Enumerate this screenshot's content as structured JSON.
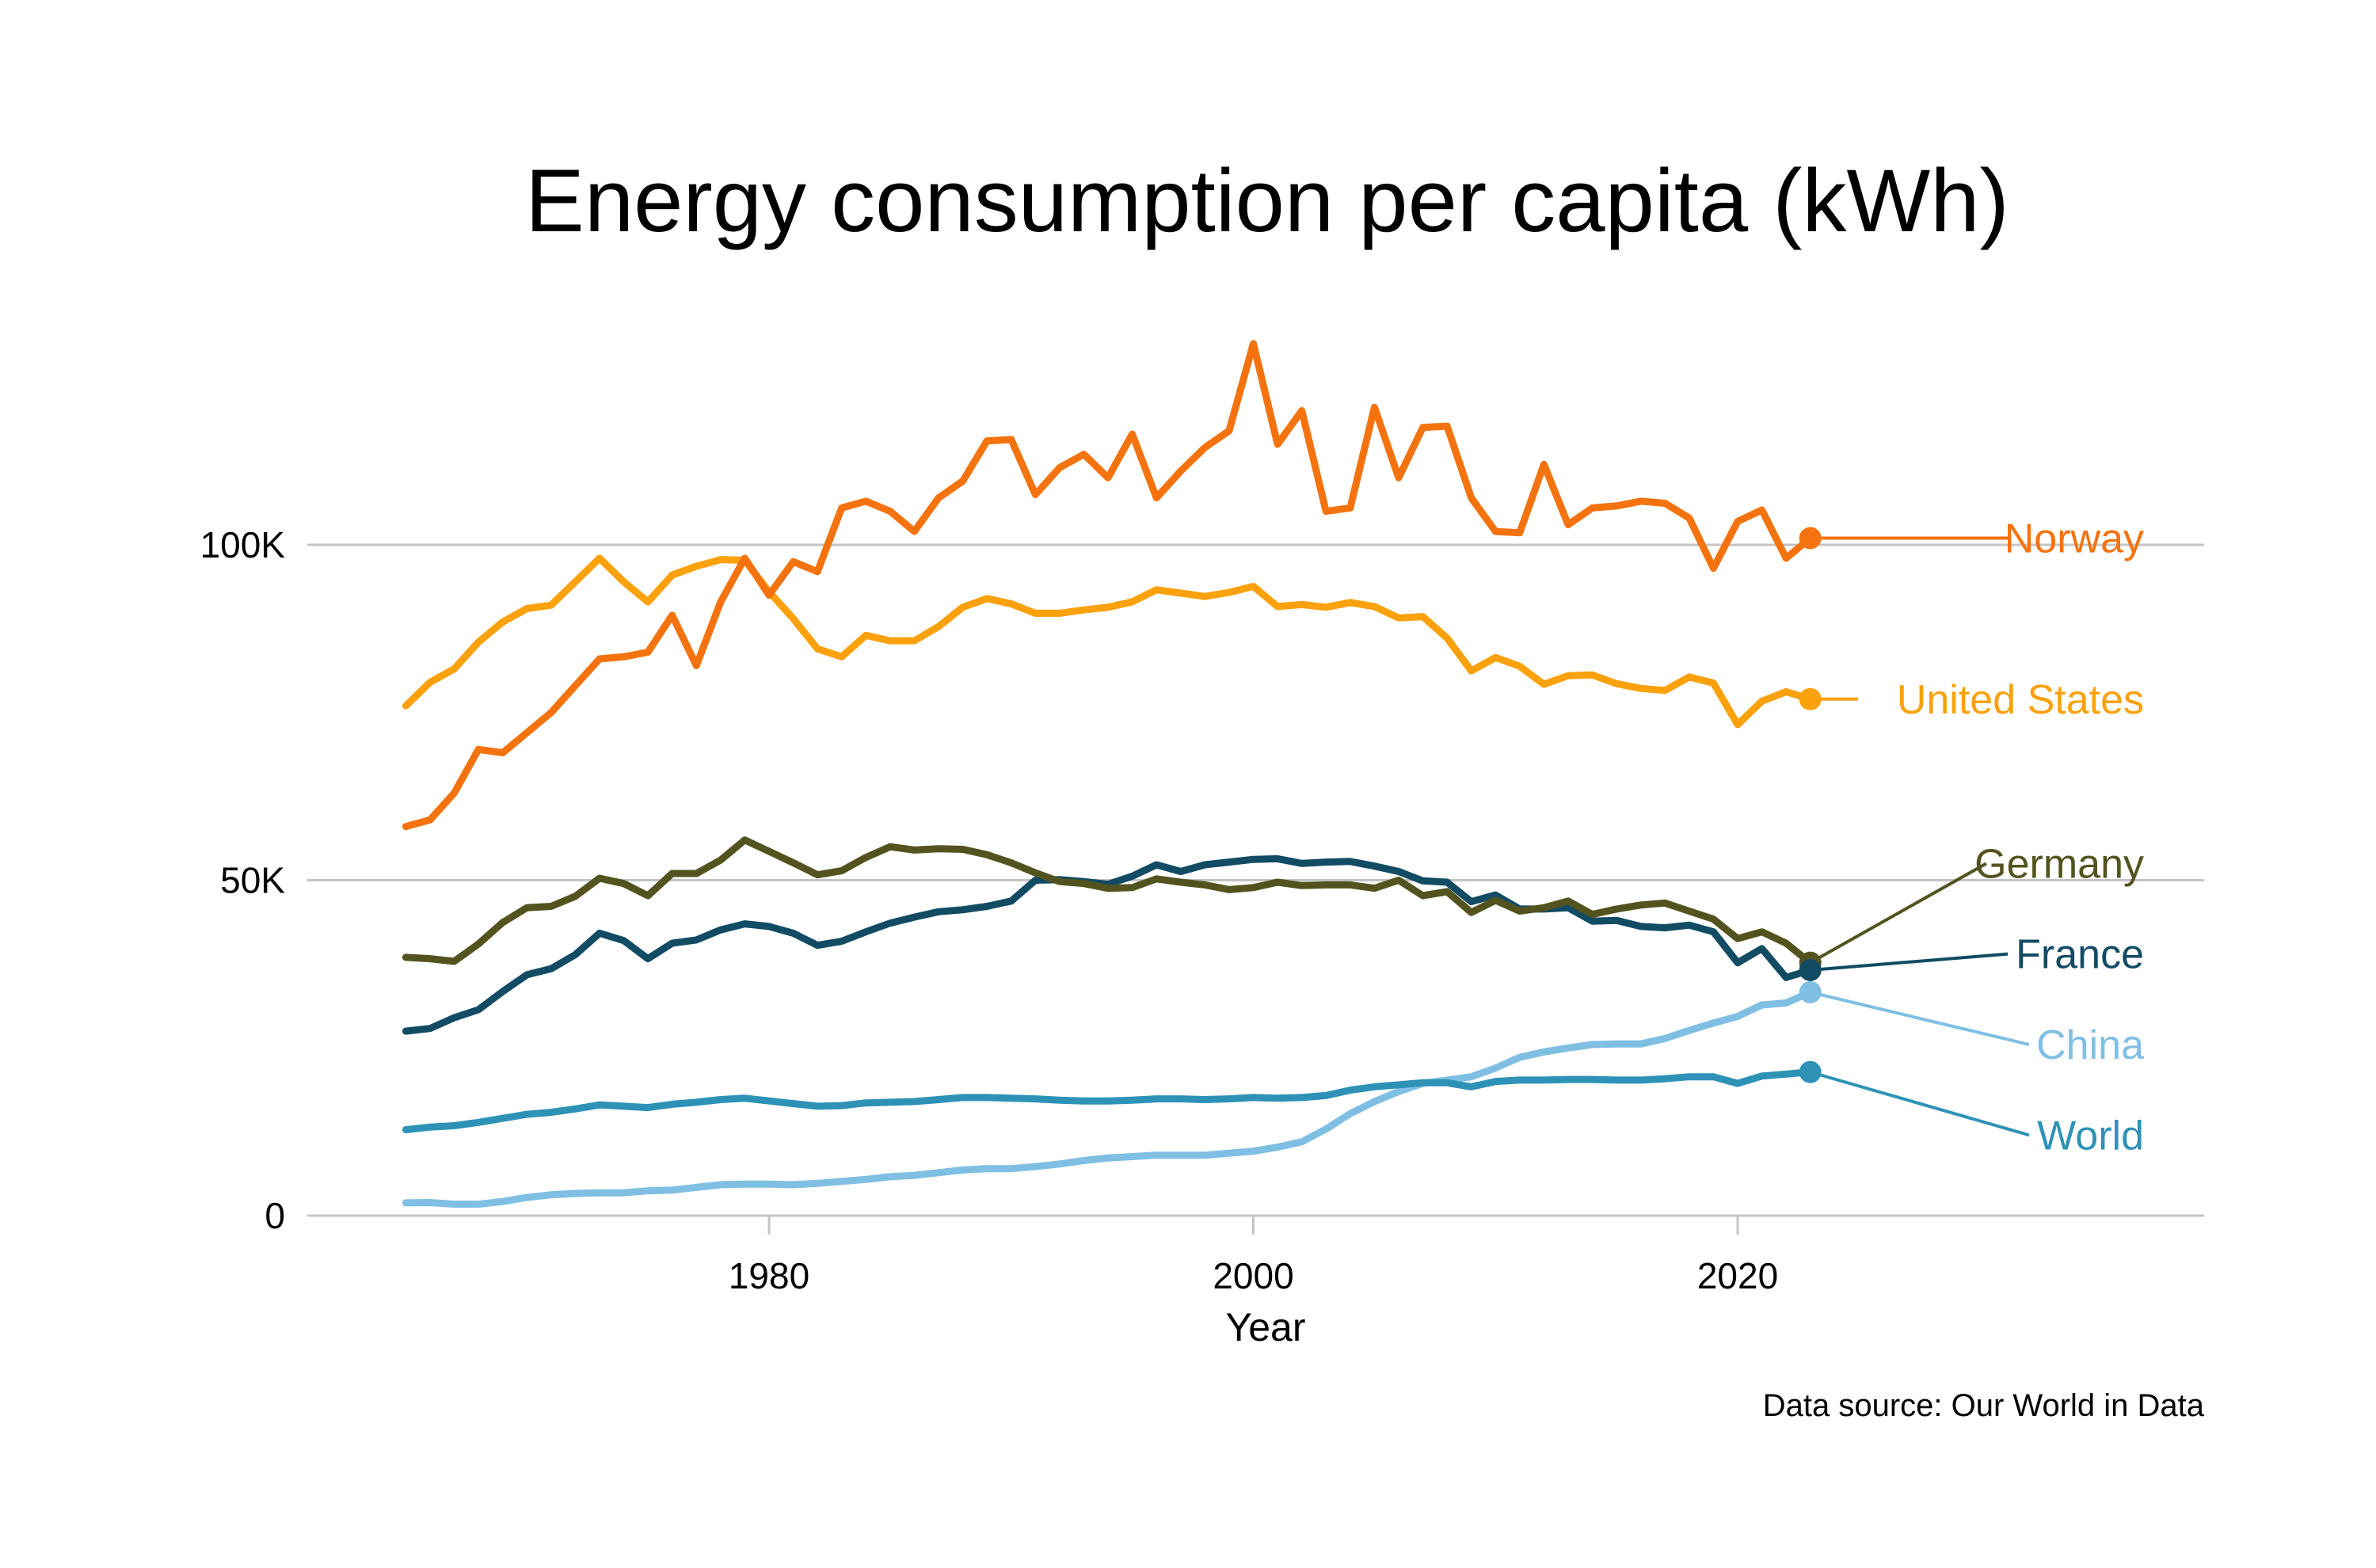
{
  "chart_data": {
    "type": "line",
    "title": "Energy consumption per capita (kWh)",
    "xlabel": "Year",
    "ylabel": "",
    "source": "Data source: Our World in Data",
    "xlim": [
      1955,
      2038
    ],
    "ylim": [
      0,
      140000
    ],
    "x_ticks": [
      1980,
      2000,
      2020
    ],
    "x_tick_labels": [
      "1980",
      "2000",
      "2020"
    ],
    "y_ticks": [
      0,
      50000,
      100000
    ],
    "y_tick_labels": [
      "0",
      "50K",
      "100K"
    ],
    "grid": "horizontal",
    "legend": "direct-labels-right",
    "x": [
      1965,
      1966,
      1967,
      1968,
      1969,
      1970,
      1971,
      1972,
      1973,
      1974,
      1975,
      1976,
      1977,
      1978,
      1979,
      1980,
      1981,
      1982,
      1983,
      1984,
      1985,
      1986,
      1987,
      1988,
      1989,
      1990,
      1991,
      1992,
      1993,
      1994,
      1995,
      1996,
      1997,
      1998,
      1999,
      2000,
      2001,
      2002,
      2003,
      2004,
      2005,
      2006,
      2007,
      2008,
      2009,
      2010,
      2011,
      2012,
      2013,
      2014,
      2015,
      2016,
      2017,
      2018,
      2019,
      2020,
      2021,
      2022,
      2023
    ],
    "series": [
      {
        "name": "Norway",
        "color": "#f5730f",
        "values": [
          58000,
          59000,
          63000,
          69500,
          69000,
          72000,
          75000,
          79000,
          83000,
          83300,
          84000,
          89500,
          82000,
          91500,
          98000,
          92500,
          97500,
          96000,
          105500,
          106500,
          105000,
          102000,
          107000,
          109500,
          115500,
          115700,
          107500,
          111500,
          113500,
          110000,
          116500,
          107000,
          111000,
          114500,
          117000,
          130000,
          115000,
          120000,
          105000,
          105500,
          120500,
          110000,
          117500,
          117700,
          107000,
          102000,
          101800,
          112000,
          103000,
          105500,
          105800,
          106500,
          106200,
          104000,
          96500,
          103500,
          105200,
          98000,
          101000
        ]
      },
      {
        "name": "United States",
        "color": "#fba10c",
        "values": [
          76000,
          79500,
          81500,
          85500,
          88500,
          90500,
          91000,
          94500,
          98000,
          94500,
          91500,
          95500,
          96800,
          97800,
          97700,
          93000,
          89000,
          84500,
          83300,
          86500,
          85700,
          85700,
          87800,
          90700,
          92000,
          91200,
          89800,
          89800,
          90300,
          90700,
          91500,
          93300,
          92800,
          92300,
          92900,
          93800,
          90800,
          91100,
          90700,
          91400,
          90800,
          89100,
          89300,
          86100,
          81200,
          83200,
          81900,
          79200,
          80500,
          80600,
          79300,
          78600,
          78300,
          80300,
          79400,
          73200,
          76700,
          78100,
          77000
        ]
      },
      {
        "name": "Germany",
        "color": "#53531f",
        "values": [
          38500,
          38300,
          37900,
          40500,
          43700,
          45900,
          46100,
          47600,
          50300,
          49500,
          47700,
          51000,
          51000,
          53000,
          56000,
          54300,
          52600,
          50800,
          51400,
          53400,
          55000,
          54500,
          54700,
          54600,
          53800,
          52600,
          51100,
          49800,
          49500,
          48800,
          48900,
          50200,
          49700,
          49300,
          48600,
          48900,
          49700,
          49200,
          49300,
          49300,
          48800,
          50000,
          47700,
          48300,
          45200,
          47000,
          45400,
          45900,
          46900,
          44900,
          45700,
          46300,
          46600,
          45400,
          44200,
          41300,
          42300,
          40600,
          37700
        ]
      },
      {
        "name": "France",
        "color": "#124b64",
        "values": [
          27500,
          27900,
          29500,
          30700,
          33400,
          35900,
          36800,
          38900,
          42100,
          41000,
          38300,
          40600,
          41100,
          42600,
          43500,
          43100,
          42100,
          40300,
          40900,
          42300,
          43600,
          44500,
          45300,
          45600,
          46100,
          46900,
          50000,
          50100,
          49800,
          49400,
          50600,
          52300,
          51300,
          52300,
          52700,
          53100,
          53200,
          52500,
          52700,
          52800,
          52100,
          51300,
          49900,
          49700,
          46800,
          47800,
          45700,
          45700,
          45900,
          43900,
          44000,
          43100,
          42900,
          43300,
          42300,
          37700,
          39800,
          35500,
          36600
        ]
      },
      {
        "name": "China",
        "color": "#7fbfe3",
        "values": [
          1900,
          1950,
          1700,
          1700,
          2100,
          2700,
          3100,
          3300,
          3400,
          3400,
          3700,
          3800,
          4200,
          4600,
          4700,
          4700,
          4600,
          4800,
          5100,
          5400,
          5800,
          6000,
          6400,
          6800,
          7000,
          7000,
          7300,
          7700,
          8200,
          8600,
          8800,
          9000,
          9000,
          9000,
          9300,
          9600,
          10200,
          11000,
          12900,
          15200,
          17000,
          18500,
          19700,
          20200,
          20700,
          22000,
          23600,
          24400,
          25000,
          25500,
          25600,
          25600,
          26400,
          27600,
          28700,
          29700,
          31400,
          31700,
          33300
        ]
      },
      {
        "name": "World",
        "color": "#2e92b7",
        "values": [
          12800,
          13200,
          13400,
          13900,
          14500,
          15100,
          15400,
          15900,
          16500,
          16300,
          16100,
          16600,
          16900,
          17300,
          17500,
          17100,
          16700,
          16300,
          16400,
          16800,
          16900,
          17000,
          17300,
          17600,
          17600,
          17500,
          17400,
          17200,
          17100,
          17100,
          17200,
          17400,
          17400,
          17300,
          17400,
          17600,
          17500,
          17600,
          17900,
          18700,
          19200,
          19500,
          19800,
          19800,
          19200,
          20000,
          20200,
          20200,
          20300,
          20300,
          20200,
          20200,
          20400,
          20700,
          20700,
          19700,
          20800,
          21100,
          21400
        ]
      }
    ],
    "end_labels": [
      {
        "series": "Norway",
        "text": "Norway",
        "label_value": 101000
      },
      {
        "series": "United States",
        "text": "United States",
        "label_value": 77000
      },
      {
        "series": "Germany",
        "text": "Germany",
        "label_value": 52500
      },
      {
        "series": "France",
        "text": "France",
        "label_value": 39000
      },
      {
        "series": "China",
        "text": "China",
        "label_value": 25500
      },
      {
        "series": "World",
        "text": "World",
        "label_value": 12000
      }
    ]
  }
}
